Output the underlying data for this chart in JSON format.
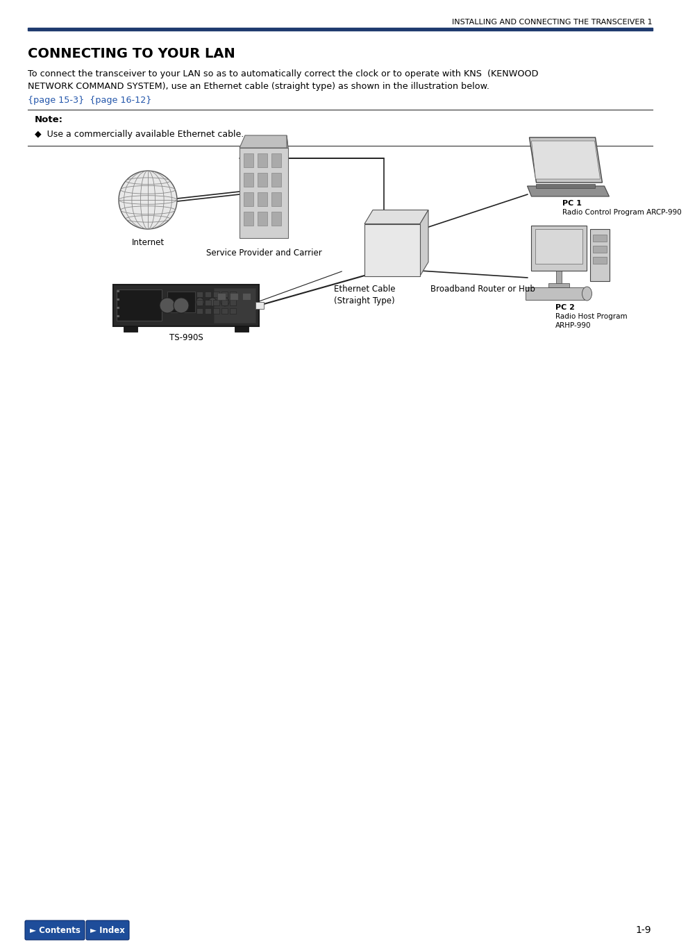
{
  "header_text": "INSTALLING AND CONNECTING THE TRANSCEIVER 1",
  "title": "CONNECTING TO YOUR LAN",
  "body_text_line1": "To connect the transceiver to your LAN so as to automatically correct the clock or to operate with KNS  (KENWOOD",
  "body_text_line2": "NETWORK COMMAND SYSTEM), use an Ethernet cable (straight type) as shown in the illustration below.",
  "link_text": "{page 15-3}  {page 16-12}",
  "note_label": "Note:",
  "note_bullet": "◆  Use a commercially available Ethernet cable.",
  "page_number": "1-9",
  "btn_contents": "► Contents",
  "btn_index": "► Index",
  "header_line_color": "#1e3a6e",
  "link_color": "#2255aa",
  "btn_color": "#1e4d9a",
  "bg_color": "#ffffff",
  "text_color": "#000000",
  "diagram": {
    "internet_label": "Internet",
    "service_provider_label": "Service Provider and Carrier",
    "ethernet_label": "Ethernet Cable\n(Straight Type)",
    "router_label": "Broadband Router or Hub",
    "pc1_line1": "PC 1",
    "pc1_line2": "Radio Control Program ARCP-990",
    "pc2_line1": "PC 2",
    "pc2_line2": "Radio Host Program",
    "pc2_line3": "ARHP-990",
    "transceiver_label": "TS-990S"
  }
}
